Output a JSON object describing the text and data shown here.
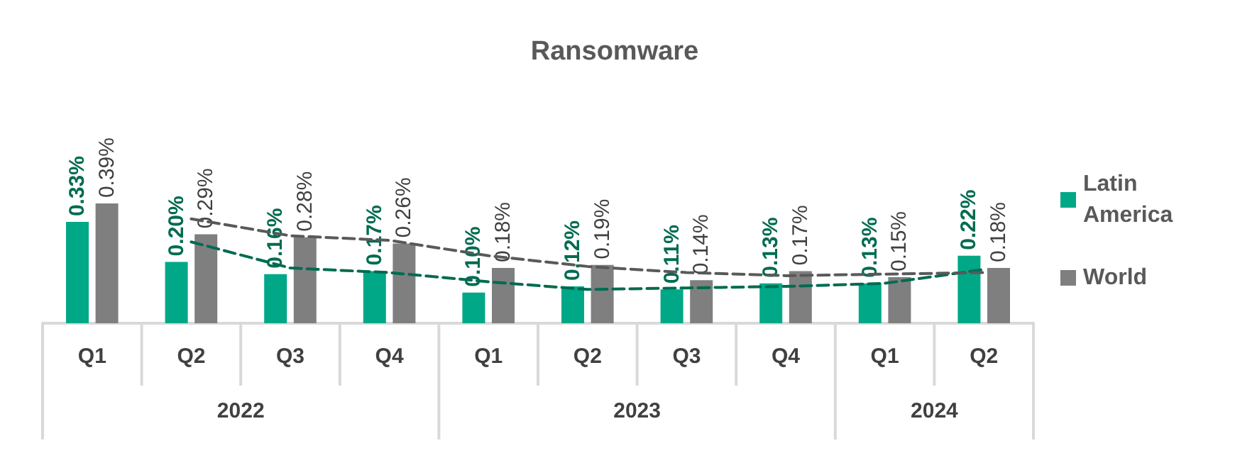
{
  "chart_data": {
    "type": "bar",
    "title": "Ransomware",
    "categories": [
      "Q1",
      "Q2",
      "Q3",
      "Q4",
      "Q1",
      "Q2",
      "Q3",
      "Q4",
      "Q1",
      "Q2"
    ],
    "annotations": [
      "2022",
      "2023",
      "2024"
    ],
    "series": [
      {
        "name": "Latin America",
        "color": "#00a887",
        "values": [
          0.33,
          0.2,
          0.16,
          0.17,
          0.1,
          0.12,
          0.11,
          0.13,
          0.13,
          0.22
        ],
        "value_labels": [
          "0.33%",
          "0.20%",
          "0.16%",
          "0.17%",
          "0.10%",
          "0.12%",
          "0.11%",
          "0.13%",
          "0.13%",
          "0.22%"
        ]
      },
      {
        "name": "World",
        "color": "#7f7f7f",
        "values": [
          0.39,
          0.29,
          0.28,
          0.26,
          0.18,
          0.19,
          0.14,
          0.17,
          0.15,
          0.18
        ],
        "value_labels": [
          "0.39%",
          "0.29%",
          "0.28%",
          "0.26%",
          "0.18%",
          "0.19%",
          "0.14%",
          "0.17%",
          "0.15%",
          "0.18%"
        ]
      },
      {
        "type": "line",
        "color": "#006b50",
        "line_style": "dashed",
        "marker": "none",
        "values": [
          null,
          0.265,
          0.18,
          0.165,
          0.135,
          0.11,
          0.115,
          0.12,
          0.13,
          0.175
        ]
      },
      {
        "type": "line",
        "color": "#595959",
        "line_style": "dashed",
        "marker": "none",
        "values": [
          null,
          0.34,
          0.285,
          0.27,
          0.22,
          0.185,
          0.165,
          0.155,
          0.16,
          0.165
        ]
      }
    ],
    "legend": "right",
    "grid": false
  }
}
